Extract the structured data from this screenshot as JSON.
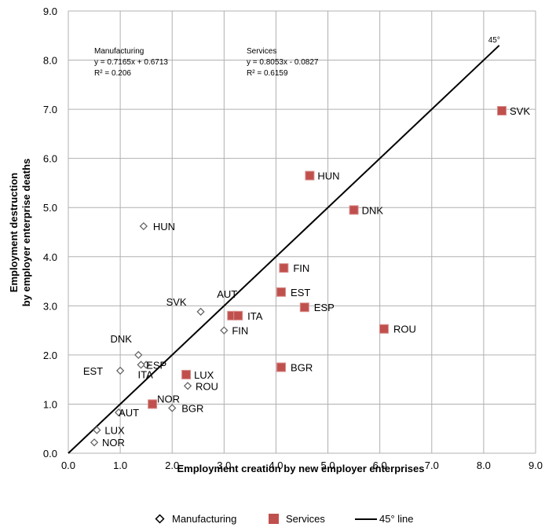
{
  "chart_data": {
    "type": "scatter",
    "xlabel": "Employment creation by new employer enterprises",
    "ylabel_line1": "Employment destruction",
    "ylabel_line2": "by employer enterprise deaths",
    "xlim": [
      0,
      9
    ],
    "ylim": [
      0,
      9
    ],
    "xticks": [
      "0.0",
      "1.0",
      "2.0",
      "3.0",
      "4.0",
      "5.0",
      "6.0",
      "7.0",
      "8.0",
      "9.0"
    ],
    "yticks": [
      "0.0",
      "1.0",
      "2.0",
      "3.0",
      "4.0",
      "5.0",
      "6.0",
      "7.0",
      "8.0",
      "9.0"
    ],
    "grid": true,
    "legend_position": "bottom",
    "series": [
      {
        "name": "Manufacturing",
        "marker": "diamond-open",
        "color": "#666666",
        "points": [
          {
            "label": "HUN",
            "x": 1.45,
            "y": 4.62
          },
          {
            "label": "SVK",
            "x": 2.55,
            "y": 2.88
          },
          {
            "label": "FIN",
            "x": 3.0,
            "y": 2.5
          },
          {
            "label": "DNK",
            "x": 1.35,
            "y": 2.0
          },
          {
            "label": "ESP",
            "x": 1.5,
            "y": 1.8
          },
          {
            "label": "ITA",
            "x": 1.4,
            "y": 1.8
          },
          {
            "label": "EST",
            "x": 1.0,
            "y": 1.68
          },
          {
            "label": "ROU",
            "x": 2.3,
            "y": 1.37
          },
          {
            "label": "BGR",
            "x": 2.0,
            "y": 0.92
          },
          {
            "label": "AUT",
            "x": 0.97,
            "y": 0.83
          },
          {
            "label": "LUX",
            "x": 0.55,
            "y": 0.47
          },
          {
            "label": "NOR",
            "x": 0.5,
            "y": 0.22
          }
        ]
      },
      {
        "name": "Services",
        "marker": "square",
        "color": "#c0504d",
        "points": [
          {
            "label": "SVK",
            "x": 8.35,
            "y": 6.97
          },
          {
            "label": "HUN",
            "x": 4.65,
            "y": 5.65
          },
          {
            "label": "DNK",
            "x": 5.5,
            "y": 4.95
          },
          {
            "label": "FIN",
            "x": 4.15,
            "y": 3.77
          },
          {
            "label": "EST",
            "x": 4.1,
            "y": 3.28
          },
          {
            "label": "ESP",
            "x": 4.55,
            "y": 2.97
          },
          {
            "label": "AUT",
            "x": 3.15,
            "y": 2.8
          },
          {
            "label": "ITA",
            "x": 3.27,
            "y": 2.8
          },
          {
            "label": "ROU",
            "x": 6.08,
            "y": 2.53
          },
          {
            "label": "BGR",
            "x": 4.1,
            "y": 1.75
          },
          {
            "label": "LUX",
            "x": 2.27,
            "y": 1.6
          },
          {
            "label": "NOR",
            "x": 1.62,
            "y": 1.0
          }
        ]
      },
      {
        "name": "45° line",
        "marker": "line",
        "color": "#000000",
        "from": [
          0,
          0
        ],
        "to": [
          8.3,
          8.3
        ]
      }
    ],
    "annotations": {
      "line_label": "45°",
      "manufacturing": {
        "title": "Manufacturing",
        "equation": "y = 0.7165x + 0.6713",
        "r2": "R² = 0.206"
      },
      "services": {
        "title": "Services",
        "equation": "y = 0.8053x - 0.0827",
        "r2": "R² = 0.6159"
      }
    }
  }
}
